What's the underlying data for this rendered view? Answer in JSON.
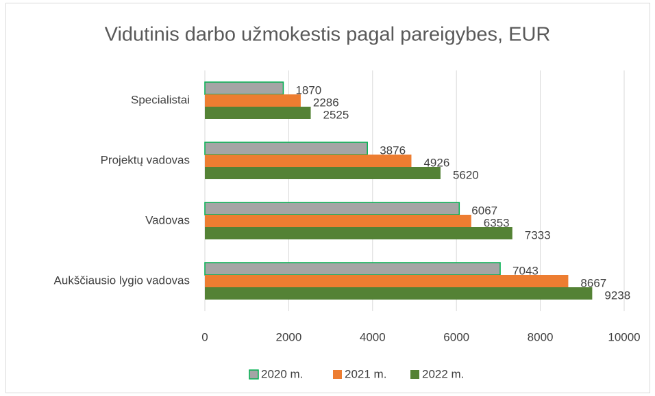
{
  "chart_data": {
    "type": "hbar",
    "title": "Vidutinis darbo užmokestis pagal pareigybes, EUR",
    "categories": [
      "Specialistai",
      "Projektų vadovas",
      "Vadovas",
      "Aukščiausio lygio vadovas"
    ],
    "series": [
      {
        "name": "2020 m.",
        "color": "#a5a5a5",
        "edge": "#00b050",
        "values": [
          1870,
          3876,
          6067,
          7043
        ]
      },
      {
        "name": "2021 m.",
        "color": "#ed7d31",
        "values": [
          2286,
          4926,
          6353,
          8667
        ]
      },
      {
        "name": "2022 m.",
        "color": "#548235",
        "values": [
          2525,
          5620,
          7333,
          9238
        ]
      }
    ],
    "xlim": [
      0,
      10000
    ],
    "xticks": [
      0,
      2000,
      4000,
      6000,
      8000,
      10000
    ],
    "grid": true,
    "legend": "bottom"
  }
}
